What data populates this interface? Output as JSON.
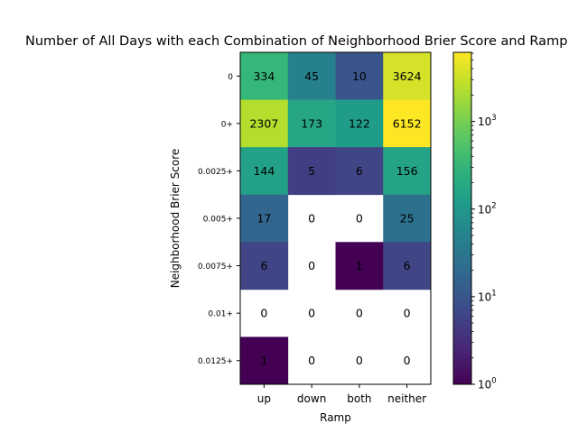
{
  "chart_data": {
    "type": "heatmap",
    "title": "Number of All Days with each Combination of Neighborhood Brier Score and Ramp",
    "xlabel": "Ramp",
    "ylabel": "Neighborhood Brier Score",
    "x_categories": [
      "up",
      "down",
      "both",
      "neither"
    ],
    "y_categories": [
      "0",
      "0+",
      "0.0025+",
      "0.005+",
      "0.0075+",
      "0.01+",
      "0.0125+"
    ],
    "values": [
      [
        334,
        45,
        10,
        3624
      ],
      [
        2307,
        173,
        122,
        6152
      ],
      [
        144,
        5,
        6,
        156
      ],
      [
        17,
        0,
        0,
        25
      ],
      [
        6,
        0,
        1,
        6
      ],
      [
        0,
        0,
        0,
        0
      ],
      [
        1,
        0,
        0,
        0
      ]
    ],
    "colorscale": "viridis",
    "color_scale_type": "log",
    "color_range": [
      1,
      6152
    ],
    "zero_cells": "blank",
    "colorbar": {
      "ticks": [
        {
          "value": 1,
          "base": "10",
          "exp": "0"
        },
        {
          "value": 10,
          "base": "10",
          "exp": "1"
        },
        {
          "value": 100,
          "base": "10",
          "exp": "2"
        },
        {
          "value": 1000,
          "base": "10",
          "exp": "3"
        }
      ]
    }
  }
}
